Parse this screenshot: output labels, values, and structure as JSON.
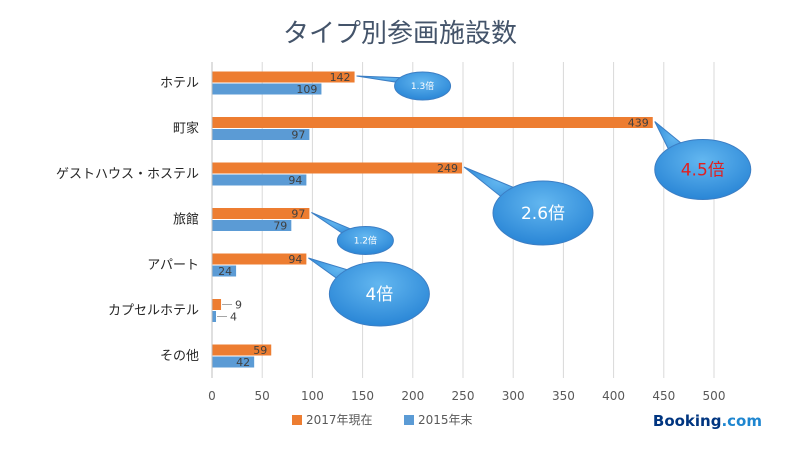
{
  "brand": {
    "name": "Booking",
    "suffix": ".com"
  },
  "chart_data": {
    "type": "bar",
    "orientation": "horizontal",
    "title": "タイプ別参画施設数",
    "categories": [
      "ホテル",
      "町家",
      "ゲストハウス・ホステル",
      "旅館",
      "アパート",
      "カプセルホテル",
      "その他"
    ],
    "series": [
      {
        "name": "2017年現在",
        "color": "#ed7d31",
        "values": [
          142,
          439,
          249,
          97,
          94,
          9,
          59
        ]
      },
      {
        "name": "2015年末",
        "color": "#5b9bd5",
        "values": [
          109,
          97,
          94,
          79,
          24,
          4,
          42
        ]
      }
    ],
    "xlim": [
      0,
      500
    ],
    "xticks": [
      0,
      50,
      100,
      150,
      200,
      250,
      300,
      350,
      400,
      450,
      500
    ],
    "grid": true,
    "legend_position": "bottom",
    "annotations": [
      {
        "text": "1.3倍",
        "category": "ホテル",
        "size": "small",
        "text_color": "#ffffff"
      },
      {
        "text": "4.5倍",
        "category": "町家",
        "size": "large",
        "text_color": "#e02020"
      },
      {
        "text": "2.6倍",
        "category": "ゲストハウス・ホステル",
        "size": "medium",
        "text_color": "#ffffff"
      },
      {
        "text": "1.2倍",
        "category": "旅館",
        "size": "small",
        "text_color": "#ffffff"
      },
      {
        "text": "4倍",
        "category": "アパート",
        "size": "medium",
        "text_color": "#ffffff"
      }
    ]
  }
}
